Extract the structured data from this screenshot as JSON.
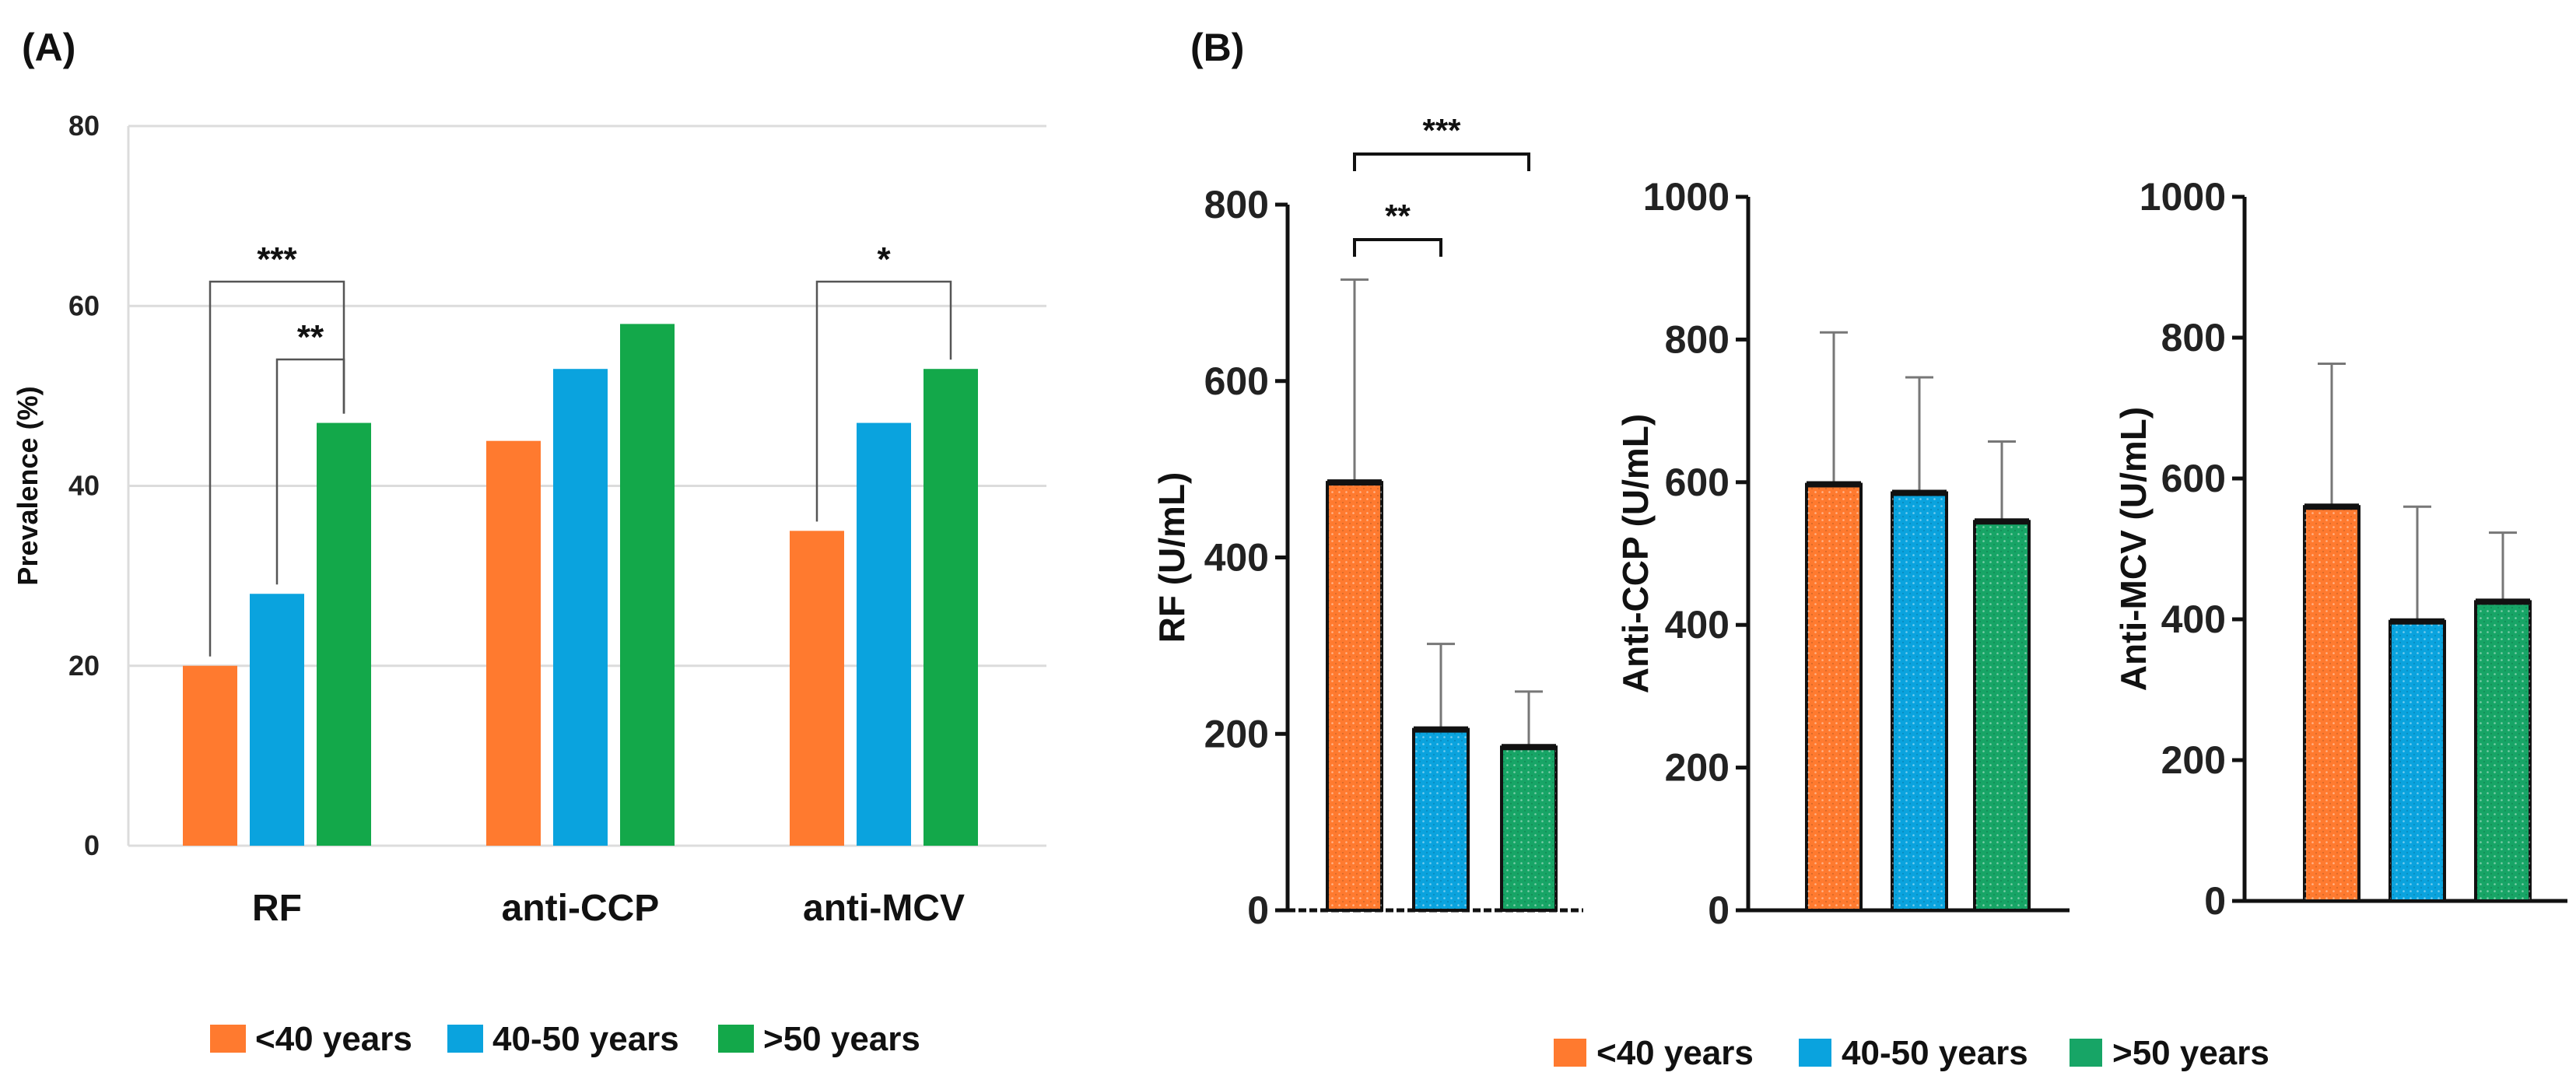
{
  "figure": {
    "panel_a_label": "(A)",
    "panel_b_label": "(B)"
  },
  "colors": {
    "orange": "#ff7a2f",
    "blue": "#0aa3de",
    "green": "#13a84a",
    "green_b": "#17a566",
    "grid": "#dcdcdc"
  },
  "chart_data": [
    {
      "id": "A",
      "type": "bar",
      "ylabel": "Prevalence (%)",
      "ylim": [
        0,
        80
      ],
      "yticks": [
        0,
        20,
        40,
        60,
        80
      ],
      "grid": true,
      "categories": [
        "RF",
        "anti-CCP",
        "anti-MCV"
      ],
      "series": [
        {
          "name": "<40 years",
          "values": [
            20,
            45,
            35
          ]
        },
        {
          "name": "40-50 years",
          "values": [
            28,
            53,
            47
          ]
        },
        {
          "name": ">50 years",
          "values": [
            47,
            58,
            53
          ]
        }
      ],
      "significance": [
        {
          "category": 0,
          "from": 0,
          "to": 2,
          "label": "***"
        },
        {
          "category": 0,
          "from": 1,
          "to": 2,
          "label": "**"
        },
        {
          "category": 2,
          "from": 0,
          "to": 2,
          "label": "*"
        }
      ],
      "legend": [
        "<40 years",
        "40-50 years",
        ">50 years"
      ],
      "legend_position": "bottom"
    },
    {
      "id": "B1",
      "type": "bar",
      "ylabel": "RF (U/mL)",
      "ylim": [
        0,
        800
      ],
      "yticks": [
        0,
        200,
        400,
        600,
        800
      ],
      "series_names": [
        "<40 years",
        "40-50 years",
        ">50 years"
      ],
      "values": [
        485,
        205,
        185
      ],
      "errors": [
        230,
        97,
        63
      ],
      "significance": [
        {
          "from": 0,
          "to": 1,
          "label": "**"
        },
        {
          "from": 0,
          "to": 2,
          "label": "***"
        }
      ]
    },
    {
      "id": "B2",
      "type": "bar",
      "ylabel": "Anti-CCP (U/mL)",
      "ylim": [
        0,
        1000
      ],
      "yticks": [
        0,
        200,
        400,
        600,
        800,
        1000
      ],
      "series_names": [
        "<40 years",
        "40-50 years",
        ">50 years"
      ],
      "values": [
        597,
        585,
        545
      ],
      "errors": [
        213,
        162,
        112
      ]
    },
    {
      "id": "B3",
      "type": "bar",
      "ylabel": "Anti-MCV (U/mL)",
      "ylim": [
        0,
        1000
      ],
      "yticks": [
        0,
        200,
        400,
        600,
        800,
        1000
      ],
      "series_names": [
        "<40 years",
        "40-50 years",
        ">50 years"
      ],
      "values": [
        560,
        397,
        425
      ],
      "errors": [
        203,
        163,
        98
      ],
      "legend": [
        "<40 years",
        "40-50 years",
        ">50 years"
      ],
      "legend_position": "bottom"
    }
  ]
}
